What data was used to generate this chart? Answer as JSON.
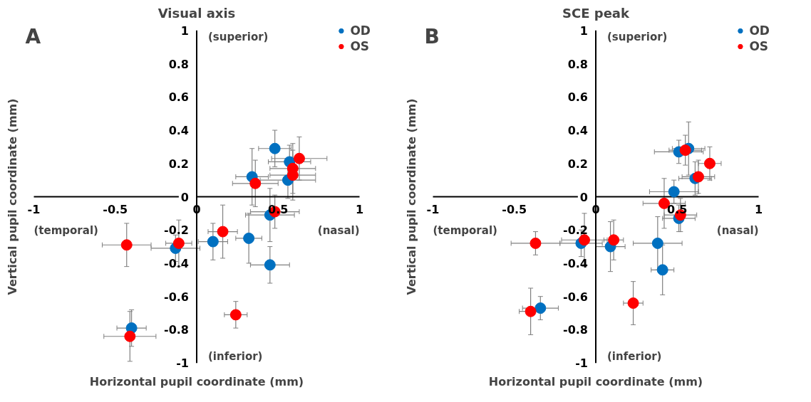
{
  "chart_data": [
    {
      "type": "scatter",
      "title": "Visual axis",
      "xlabel": "Horizontal pupil coordinate (mm)",
      "ylabel": "Vertical pupil coordinate (mm)",
      "annotations": [
        "A",
        "(superior)",
        "(inferior)",
        "(temporal)",
        "(nasal)"
      ],
      "xlim": [
        -1,
        1
      ],
      "ylim": [
        -1,
        1
      ],
      "xticks": [
        -1,
        -0.5,
        0,
        0.5,
        1
      ],
      "yticks": [
        -1,
        -0.8,
        -0.6,
        -0.4,
        -0.2,
        0,
        0.2,
        0.4,
        0.6,
        0.8,
        1
      ],
      "grid": false,
      "legend": "top right",
      "marker": "circle",
      "series": [
        {
          "name": "OD",
          "color": "#0070c0",
          "x": [
            0.48,
            0.57,
            0.34,
            0.56,
            0.45,
            0.1,
            0.32,
            0.45,
            -0.13,
            -0.4
          ],
          "values": [
            0.29,
            0.21,
            0.12,
            0.1,
            -0.11,
            -0.27,
            -0.25,
            -0.41,
            -0.31,
            -0.79
          ],
          "xerrors": [
            0.1,
            0.13,
            0.1,
            0.17,
            0.15,
            0.09,
            0.08,
            0.12,
            0.15,
            0.09
          ],
          "errors": [
            0.11,
            0.1,
            0.17,
            0.11,
            0.16,
            0.11,
            0.15,
            0.11,
            0.08,
            0.11
          ]
        },
        {
          "name": "OS",
          "color": "#ff0000",
          "x": [
            0.63,
            0.59,
            0.59,
            0.36,
            0.48,
            0.16,
            -0.11,
            -0.43,
            0.24,
            -0.41
          ],
          "values": [
            0.23,
            0.17,
            0.13,
            0.08,
            -0.09,
            -0.21,
            -0.28,
            -0.29,
            -0.71,
            -0.84
          ],
          "xerrors": [
            0.17,
            0.14,
            0.14,
            0.14,
            0.15,
            0.09,
            0.08,
            0.15,
            0.07,
            0.16
          ],
          "errors": [
            0.13,
            0.15,
            0.15,
            0.14,
            0.1,
            0.16,
            0.14,
            0.13,
            0.08,
            0.15
          ]
        }
      ]
    },
    {
      "type": "scatter",
      "title": "SCE peak",
      "xlabel": "Horizontal pupil coordinate (mm)",
      "ylabel": "Vertical pupil coordinate (mm)",
      "annotations": [
        "B",
        "(superior)",
        "(inferior)",
        "(temporal)",
        "(nasal)"
      ],
      "xlim": [
        -1,
        1
      ],
      "ylim": [
        -1,
        1
      ],
      "xticks": [
        -1,
        -0.5,
        0,
        0.5,
        1
      ],
      "yticks": [
        -1,
        -0.8,
        -0.6,
        -0.4,
        -0.2,
        0,
        0.2,
        0.4,
        0.6,
        0.8,
        1
      ],
      "grid": false,
      "legend": "top right",
      "marker": "circle",
      "series": [
        {
          "name": "OD",
          "color": "#0070c0",
          "x": [
            0.51,
            0.57,
            0.61,
            0.48,
            0.51,
            0.38,
            0.41,
            0.09,
            -0.09,
            -0.34
          ],
          "values": [
            0.27,
            0.29,
            0.11,
            0.03,
            -0.13,
            -0.28,
            -0.44,
            -0.3,
            -0.28,
            -0.67
          ],
          "xerrors": [
            0.15,
            0.1,
            0.1,
            0.15,
            0.1,
            0.15,
            0.07,
            0.09,
            0.13,
            0.11
          ],
          "errors": [
            0.07,
            0.16,
            0.1,
            0.07,
            0.08,
            0.16,
            0.15,
            0.15,
            0.08,
            0.07
          ]
        },
        {
          "name": "OS",
          "color": "#ff0000",
          "x": [
            0.55,
            0.63,
            0.7,
            0.42,
            0.52,
            0.11,
            -0.07,
            -0.37,
            0.23,
            -0.4
          ],
          "values": [
            0.28,
            0.12,
            0.2,
            -0.04,
            -0.11,
            -0.26,
            -0.26,
            -0.28,
            -0.64,
            -0.69
          ],
          "xerrors": [
            0.1,
            0.1,
            0.07,
            0.13,
            0.1,
            0.06,
            0.14,
            0.15,
            0.06,
            0.07
          ],
          "errors": [
            0.09,
            0.1,
            0.1,
            0.15,
            0.1,
            0.12,
            0.16,
            0.07,
            0.13,
            0.14
          ]
        }
      ]
    }
  ]
}
